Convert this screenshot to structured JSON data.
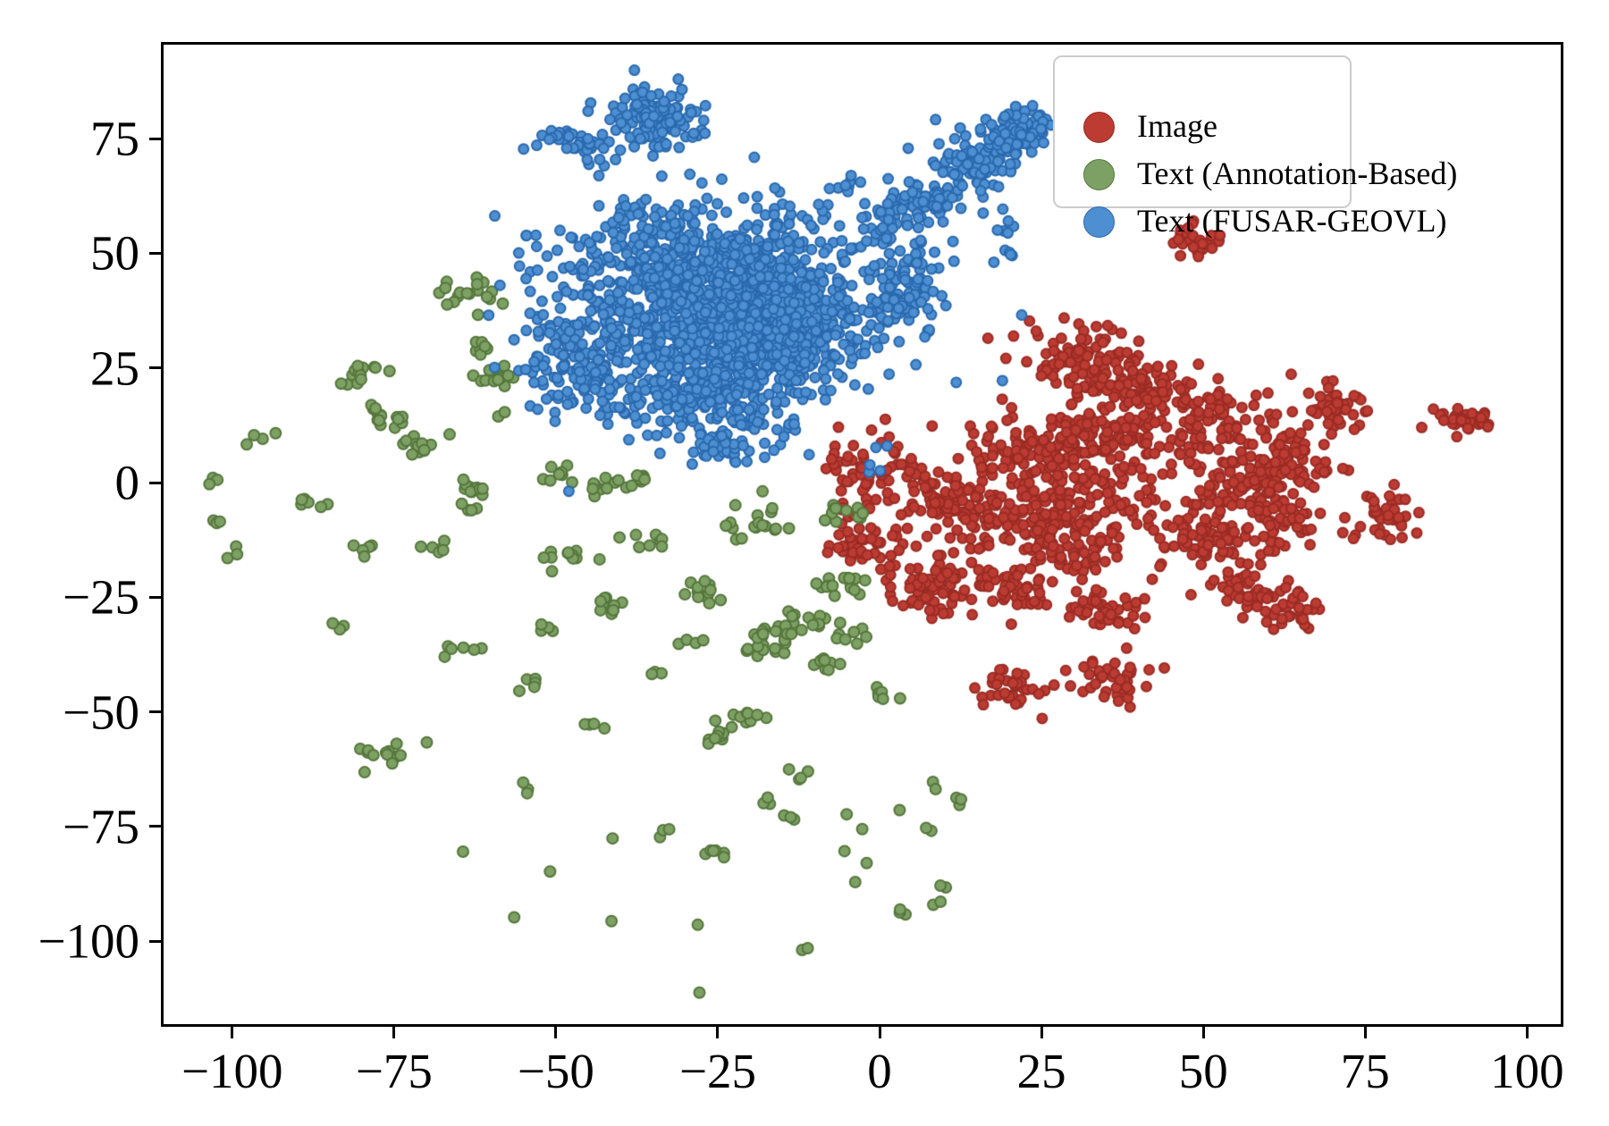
{
  "chart_data": {
    "type": "scatter",
    "title": "",
    "xlabel": "",
    "ylabel": "",
    "grid": false,
    "xlim": [
      -110.6,
      105.2
    ],
    "ylim": [
      -118.1,
      95.5
    ],
    "xticks": {
      "values": [
        -100,
        -75,
        -50,
        -25,
        0,
        25,
        50,
        75,
        100
      ],
      "labels": [
        "−100",
        "−75",
        "−50",
        "−25",
        "0",
        "25",
        "50",
        "75",
        "100"
      ]
    },
    "yticks": {
      "values": [
        75,
        50,
        25,
        0,
        -25,
        -50,
        -75,
        -100
      ],
      "labels": [
        "75",
        "50",
        "25",
        "0",
        "−25",
        "−50",
        "−75",
        "−100"
      ]
    },
    "legend": {
      "position": "upper right"
    },
    "seed": 7,
    "series": [
      {
        "label": "Image",
        "color": "#bc3b32",
        "edge": "#9a2c24",
        "dot_radius_px": 5.5,
        "clusters": [
          [
            12,
            -4,
            4.5,
            5,
            110
          ],
          [
            8,
            -23,
            3,
            3.5,
            70
          ],
          [
            -2,
            3,
            3.5,
            5,
            60
          ],
          [
            -3,
            -13,
            2.5,
            3,
            40
          ],
          [
            25,
            8,
            5,
            5,
            110
          ],
          [
            22,
            -8,
            4,
            4,
            80
          ],
          [
            20,
            -22,
            3.5,
            2.8,
            55
          ],
          [
            33,
            -2,
            5,
            5,
            110
          ],
          [
            35,
            -28,
            3.5,
            2.5,
            45
          ],
          [
            30,
            -15,
            4,
            3,
            60
          ],
          [
            31,
            27,
            4.5,
            3.5,
            90
          ],
          [
            42,
            20,
            4,
            3.5,
            80
          ],
          [
            36,
            11,
            4,
            3.5,
            70
          ],
          [
            52,
            12,
            4.5,
            4,
            90
          ],
          [
            55,
            0,
            4,
            4,
            80
          ],
          [
            50,
            -12,
            4,
            3.5,
            70
          ],
          [
            57,
            -23,
            3,
            2.5,
            45
          ],
          [
            63.5,
            -28,
            2.5,
            2,
            35
          ],
          [
            65,
            5,
            3.5,
            3.5,
            60
          ],
          [
            70,
            17,
            3,
            2.5,
            45
          ],
          [
            62,
            -8,
            3,
            3,
            50
          ],
          [
            78,
            -7,
            2.2,
            2.8,
            40
          ],
          [
            49,
            52.8,
            2.3,
            2,
            32
          ],
          [
            90,
            13.5,
            2.5,
            1.8,
            35
          ],
          [
            20.2,
            -44.4,
            2.6,
            2.2,
            35
          ],
          [
            36.2,
            -43.5,
            3.2,
            2.4,
            40
          ]
        ]
      },
      {
        "label": "Text (Annotation-Based)",
        "color": "#7da164",
        "edge": "#55763c",
        "dot_radius_px": 6,
        "clusters": [
          [
            -63.9,
            41.5,
            2.6,
            1.9,
            18
          ],
          [
            -62.0,
            29.6,
            1.1,
            0.9,
            7
          ],
          [
            -79.1,
            23.2,
            2.0,
            1.3,
            14
          ],
          [
            -59.3,
            22.4,
            2.0,
            1.2,
            13
          ],
          [
            -75.3,
            13.0,
            1.0,
            0.8,
            3
          ],
          [
            -59.1,
            14.6,
            0.8,
            0.6,
            2
          ],
          [
            -95.5,
            10.2,
            0.9,
            0.8,
            3
          ],
          [
            -98.6,
            7.8,
            0.5,
            0.5,
            1
          ],
          [
            -103.2,
            1.0,
            0.8,
            0.7,
            3
          ],
          [
            -89.5,
            -3.9,
            1.0,
            0.9,
            4
          ],
          [
            -85.8,
            -4.9,
            0.6,
            0.6,
            2
          ],
          [
            -102.0,
            -8.2,
            0.8,
            0.7,
            3
          ],
          [
            -99.7,
            -15.5,
            0.8,
            0.7,
            3
          ],
          [
            -79.4,
            -14.6,
            1.2,
            1.0,
            5
          ],
          [
            -77.5,
            13.5,
            2.2,
            1.5,
            12
          ],
          [
            -70.5,
            8.0,
            2.4,
            1.6,
            12
          ],
          [
            -66.9,
            -14.4,
            1.3,
            1.0,
            6
          ],
          [
            -64.3,
            0.3,
            1.2,
            1.0,
            5
          ],
          [
            -62.5,
            -2.0,
            1.4,
            1.2,
            6
          ],
          [
            -63.5,
            -6.0,
            1.0,
            0.8,
            4
          ],
          [
            -48.9,
            2.5,
            1.6,
            1.2,
            8
          ],
          [
            -47.7,
            -15.2,
            1.7,
            1.3,
            10
          ],
          [
            -51.8,
            -16.0,
            0.8,
            0.7,
            3
          ],
          [
            -43.0,
            0.5,
            1.6,
            1.2,
            8
          ],
          [
            -37.5,
            0.8,
            1.6,
            1.2,
            9
          ],
          [
            -41.2,
            -26.5,
            1.7,
            1.3,
            10
          ],
          [
            -52.5,
            -32.0,
            1.0,
            0.9,
            4
          ],
          [
            -54.0,
            -43.5,
            1.2,
            1.0,
            5
          ],
          [
            -33.9,
            -41.3,
            0.9,
            0.8,
            3
          ],
          [
            -29.4,
            -35.2,
            1.0,
            0.9,
            4
          ],
          [
            -26.9,
            -24.2,
            1.8,
            1.4,
            12
          ],
          [
            -34.5,
            -12.7,
            1.3,
            1.0,
            6
          ],
          [
            -39.2,
            -11.8,
            0.7,
            0.6,
            2
          ],
          [
            -19.1,
            -9.0,
            2.5,
            1.8,
            18
          ],
          [
            -6.1,
            -6.4,
            1.9,
            1.4,
            12
          ],
          [
            -17.2,
            -36.2,
            2.0,
            1.5,
            13
          ],
          [
            -13.4,
            -31.4,
            3.0,
            2.2,
            24
          ],
          [
            -9.3,
            -22.2,
            1.0,
            0.9,
            4
          ],
          [
            -4.7,
            -22.0,
            1.7,
            1.3,
            12
          ],
          [
            -4.8,
            -33.0,
            1.5,
            1.1,
            8
          ],
          [
            -7.5,
            -40.1,
            1.5,
            1.1,
            8
          ],
          [
            0.9,
            -46.5,
            1.3,
            1.0,
            6
          ],
          [
            -19.5,
            -51.3,
            1.5,
            1.2,
            8
          ],
          [
            -24.3,
            -55.2,
            1.7,
            1.3,
            10
          ],
          [
            -43.5,
            -53.2,
            1.0,
            0.9,
            4
          ],
          [
            -76.4,
            -59.1,
            2.6,
            2.0,
            13
          ],
          [
            -84.0,
            -31.5,
            0.9,
            0.8,
            3
          ],
          [
            -66.5,
            -37.0,
            0.9,
            0.8,
            3
          ],
          [
            -63.5,
            -36.3,
            0.9,
            0.8,
            3
          ],
          [
            -53.9,
            -66.8,
            0.9,
            0.8,
            3
          ],
          [
            -12.5,
            -63.9,
            1.0,
            0.9,
            4
          ],
          [
            -16.9,
            -69.5,
            0.9,
            0.8,
            3
          ],
          [
            -13.8,
            -73.4,
            0.8,
            0.7,
            3
          ],
          [
            -3.2,
            -73.7,
            0.8,
            0.7,
            2
          ],
          [
            3.0,
            -71.6,
            0.5,
            0.5,
            1
          ],
          [
            8.2,
            -75.5,
            0.7,
            0.6,
            2
          ],
          [
            8.7,
            -66.6,
            0.7,
            0.6,
            2
          ],
          [
            12.5,
            -69.9,
            0.9,
            0.8,
            3
          ],
          [
            -41.5,
            -77.3,
            0.5,
            0.5,
            1
          ],
          [
            -33.5,
            -76.0,
            0.8,
            0.7,
            3
          ],
          [
            -51.5,
            -85.3,
            0.5,
            0.5,
            1
          ],
          [
            -24.9,
            -81.3,
            1.3,
            1.0,
            6
          ],
          [
            -64.7,
            -79.3,
            0.5,
            0.5,
            1
          ],
          [
            -56.1,
            -94.6,
            0.5,
            0.5,
            1
          ],
          [
            -41.6,
            -96.4,
            0.5,
            0.5,
            1
          ],
          [
            -27.9,
            -96.4,
            0.5,
            0.5,
            1
          ],
          [
            -5.5,
            -80.5,
            0.5,
            0.5,
            1
          ],
          [
            -1.9,
            -83.2,
            0.5,
            0.5,
            1
          ],
          [
            -3.9,
            -86.4,
            0.5,
            0.5,
            1
          ],
          [
            10.2,
            -87.5,
            0.7,
            0.6,
            2
          ],
          [
            8.9,
            -91.4,
            0.7,
            0.6,
            2
          ],
          [
            3.7,
            -94.6,
            0.8,
            0.7,
            3
          ],
          [
            -11.9,
            -101.6,
            0.7,
            0.6,
            2
          ],
          [
            -28.2,
            -111.6,
            0.5,
            0.5,
            1
          ]
        ]
      },
      {
        "label": "Text (FUSAR-GEOVL)",
        "color": "#4d8fd1",
        "edge": "#2a69ae",
        "dot_radius_px": 5.5,
        "clusters": [
          [
            -22,
            37,
            10,
            9,
            850
          ],
          [
            -18,
            33,
            6,
            5.5,
            420
          ],
          [
            -30,
            50,
            11,
            5.5,
            330
          ],
          [
            -44,
            28,
            5,
            6.5,
            170
          ],
          [
            -27,
            17,
            6,
            4.5,
            170
          ],
          [
            3,
            42,
            3.5,
            5.5,
            110
          ],
          [
            -25,
            38,
            15,
            11,
            130
          ],
          [
            -34.5,
            79.5,
            3.6,
            3.3,
            125
          ],
          [
            -45.5,
            74.5,
            2.6,
            2.1,
            32
          ],
          [
            -50.8,
            76.0,
            1.3,
            1.2,
            10
          ],
          [
            7.5,
            61.5,
            2.8,
            2.5,
            65
          ],
          [
            14,
            69,
            3,
            2.8,
            85
          ],
          [
            21,
            76.5,
            2.9,
            2.7,
            85
          ],
          [
            1.5,
            57,
            2.4,
            2.4,
            28
          ],
          [
            -5.5,
            64,
            1.4,
            1.4,
            8
          ],
          [
            20,
            52,
            1.8,
            2.2,
            10
          ],
          [
            -24.5,
            6.5,
            2.6,
            1.6,
            22
          ],
          [
            -52.5,
            17,
            0.9,
            0.9,
            3
          ],
          [
            -17.5,
            5.2,
            0.4,
            0.4,
            1
          ],
          [
            0.8,
            7.8,
            0.8,
            0.8,
            2
          ],
          [
            -1.5,
            3.0,
            0.8,
            0.8,
            3
          ]
        ]
      }
    ]
  }
}
